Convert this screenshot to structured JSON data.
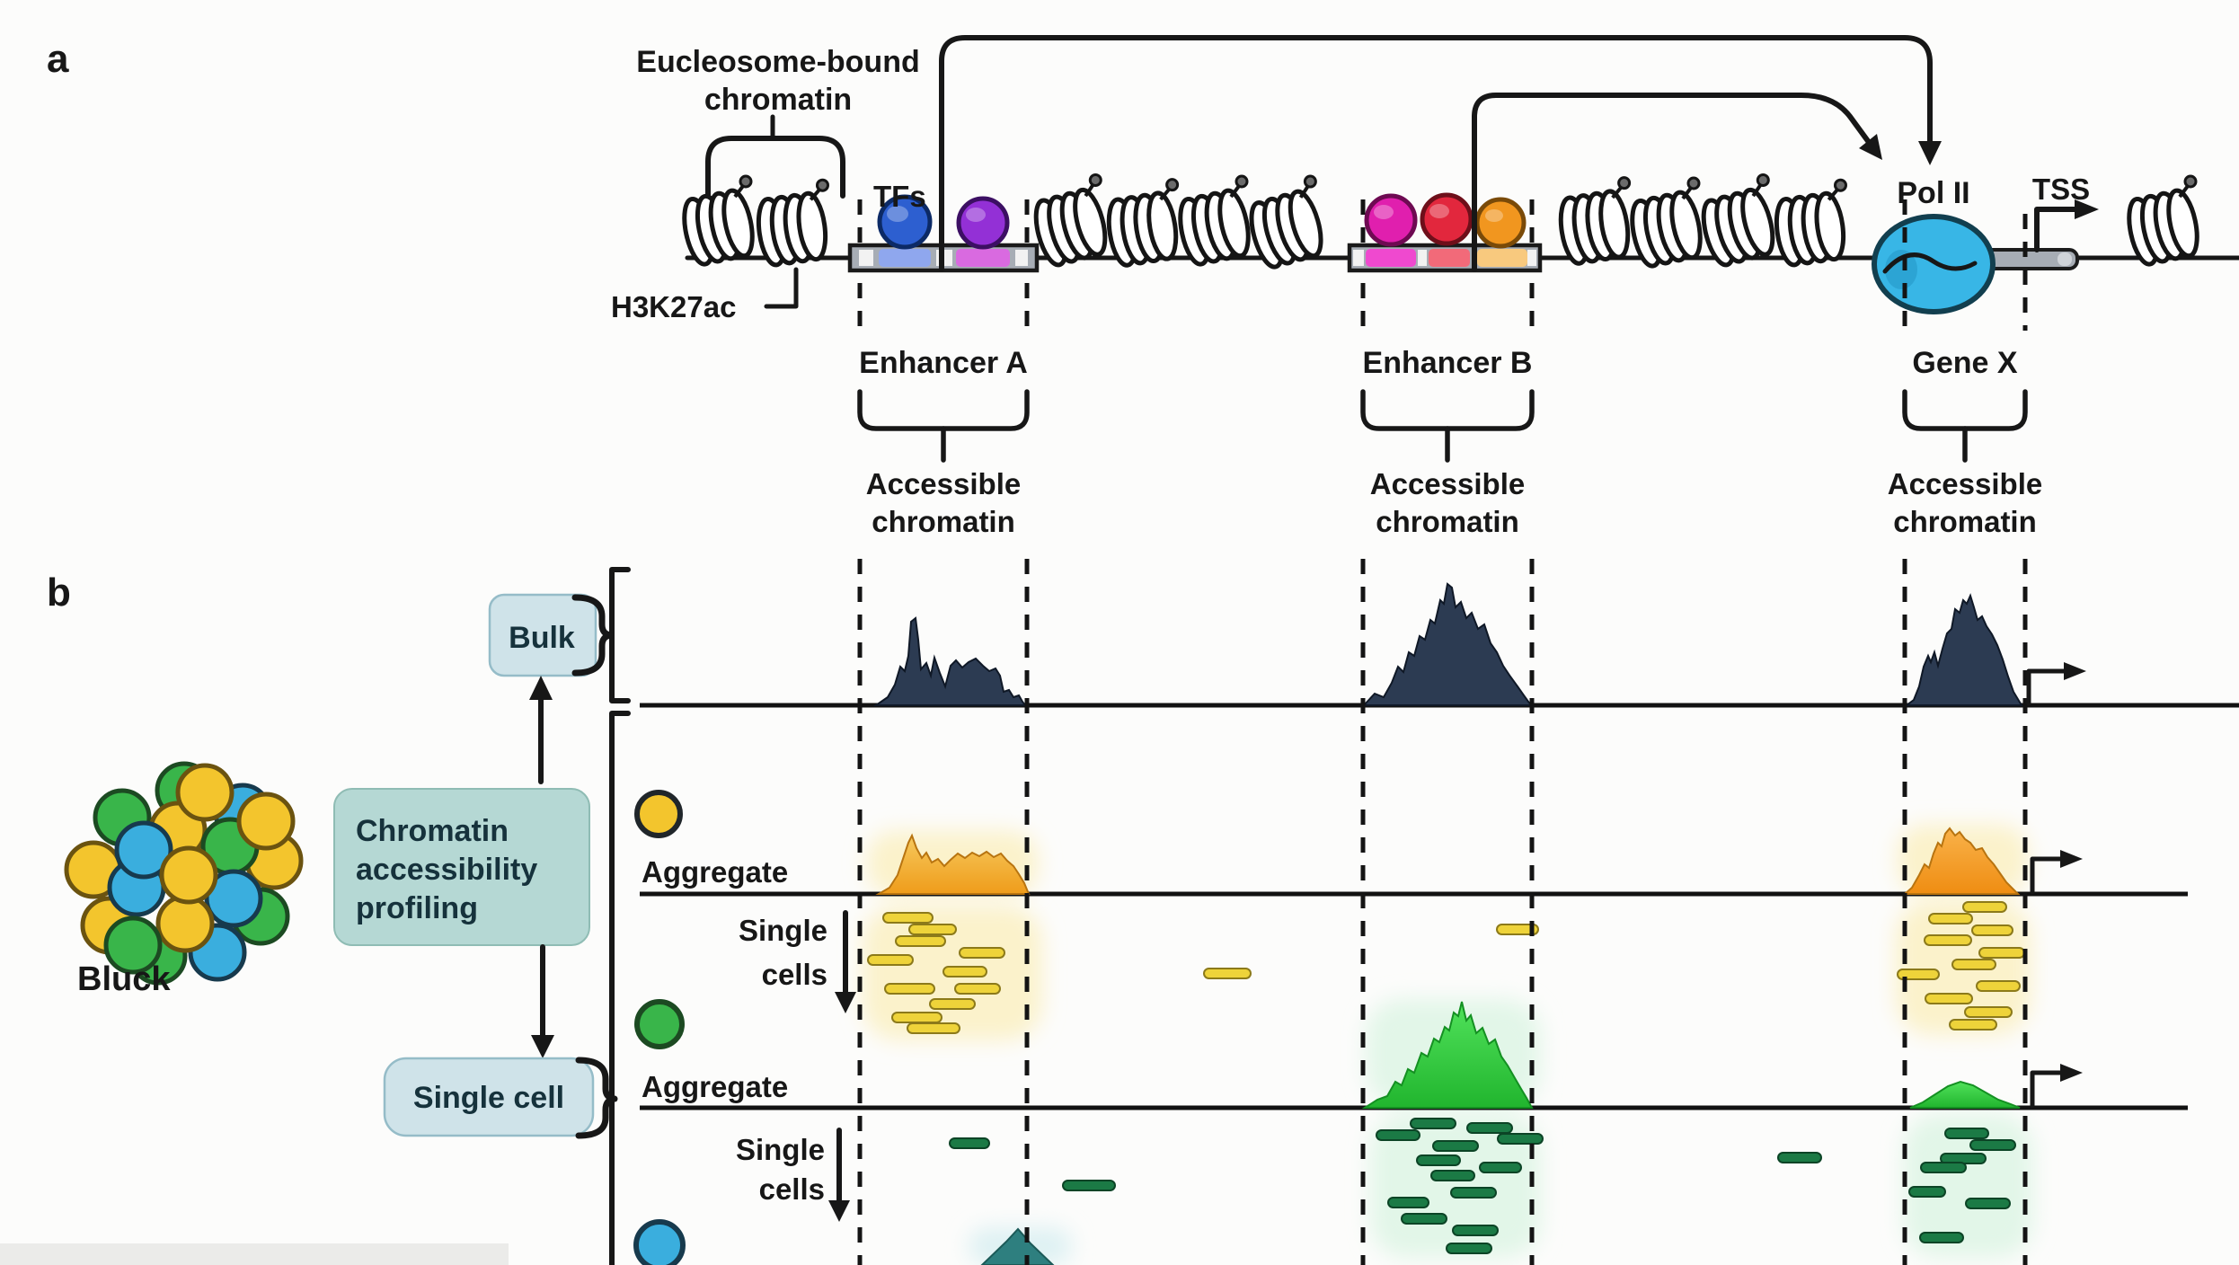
{
  "panel_a": {
    "label": "a",
    "nucleosome_label_lines": [
      "Eucleosome-bound",
      "chromatin"
    ],
    "h3k27ac_label": "H3K27ac",
    "tfs_label": "TFs",
    "pol2_label": "Pol II",
    "tss_label": "TSS",
    "regions": [
      {
        "name": "Enhancer A",
        "sub_lines": [
          "Accessible",
          "chromatin"
        ]
      },
      {
        "name": "Enhancer B",
        "sub_lines": [
          "Accessible",
          "chromatin"
        ]
      },
      {
        "name": "Gene X",
        "sub_lines": [
          "Accessible",
          "chromatin"
        ]
      }
    ]
  },
  "panel_b": {
    "label": "b",
    "bulk_box_label": "Bulk",
    "profiling_box_lines": [
      "Chromatin",
      "accessibility",
      "profiling"
    ],
    "single_cell_box_label": "Single cell",
    "block_label": "Bluck",
    "yellow_track": {
      "aggregate_label": "Aggregate",
      "single_cells_lines": [
        "Single",
        "cells"
      ]
    },
    "green_track": {
      "aggregate_label": "Aggregate",
      "single_cells_lines": [
        "Single",
        "cells"
      ]
    }
  },
  "palette": {
    "navy": "#2c3b52",
    "amber": "#f2a93b",
    "orange": "#f0941f",
    "green": "#2ec93e",
    "yellow_read": "#eed33a",
    "yellow_read_dark": "#8c7a1a",
    "green_read": "#1b7a45",
    "green_read_dark": "#0c4426",
    "cyan": "#38b6e6",
    "teal_peak": "#2e7f7f",
    "box_blue": "#cfe3e9",
    "box_teal": "#b5d8d4",
    "box_text": "#16323c",
    "bar_gray": "#a7adb5",
    "tf_blue": "#2d5fd0",
    "tf_purple": "#9330d6",
    "tf_magenta": "#e01fae",
    "tf_red": "#e2273d",
    "tf_orange": "#f1961f",
    "base_blue": "#8fa7ee",
    "base_purple": "#d96ae0",
    "base_magenta": "#ef49cf",
    "base_red": "#f26a79",
    "base_orange": "#f8c97e",
    "cell_yellow": "#f3c52d",
    "cell_green": "#39b54a",
    "cell_blue": "#3aaede"
  },
  "reads": {
    "yellow": [
      [
        983,
        1016,
        55
      ],
      [
        1012,
        1029,
        52
      ],
      [
        997,
        1042,
        55
      ],
      [
        1068,
        1055,
        50
      ],
      [
        966,
        1063,
        50
      ],
      [
        1050,
        1076,
        48
      ],
      [
        985,
        1095,
        55
      ],
      [
        1063,
        1095,
        50
      ],
      [
        1035,
        1112,
        50
      ],
      [
        993,
        1127,
        55
      ],
      [
        1010,
        1139,
        58
      ],
      [
        1340,
        1078,
        52
      ],
      [
        1666,
        1029,
        46
      ],
      [
        2185,
        1004,
        48
      ],
      [
        2147,
        1017,
        48
      ],
      [
        2195,
        1030,
        45
      ],
      [
        2142,
        1041,
        52
      ],
      [
        2203,
        1055,
        50
      ],
      [
        2173,
        1068,
        48
      ],
      [
        2112,
        1079,
        46
      ],
      [
        2200,
        1092,
        48
      ],
      [
        2143,
        1106,
        52
      ],
      [
        2187,
        1121,
        52
      ],
      [
        2170,
        1135,
        52
      ]
    ],
    "green": [
      [
        1570,
        1245,
        50
      ],
      [
        1633,
        1250,
        50
      ],
      [
        1532,
        1258,
        48
      ],
      [
        1667,
        1262,
        50
      ],
      [
        1595,
        1270,
        50
      ],
      [
        1577,
        1286,
        48
      ],
      [
        1647,
        1294,
        46
      ],
      [
        1593,
        1303,
        48
      ],
      [
        1615,
        1322,
        50
      ],
      [
        1545,
        1333,
        45
      ],
      [
        1560,
        1351,
        50
      ],
      [
        1617,
        1364,
        50
      ],
      [
        1610,
        1384,
        50
      ],
      [
        1057,
        1267,
        44
      ],
      [
        1183,
        1314,
        58
      ],
      [
        1979,
        1283,
        48
      ],
      [
        2165,
        1256,
        48
      ],
      [
        2193,
        1269,
        50
      ],
      [
        2160,
        1284,
        50
      ],
      [
        2138,
        1294,
        50
      ],
      [
        2125,
        1321,
        40
      ],
      [
        2188,
        1334,
        49
      ],
      [
        2137,
        1372,
        48
      ]
    ]
  }
}
